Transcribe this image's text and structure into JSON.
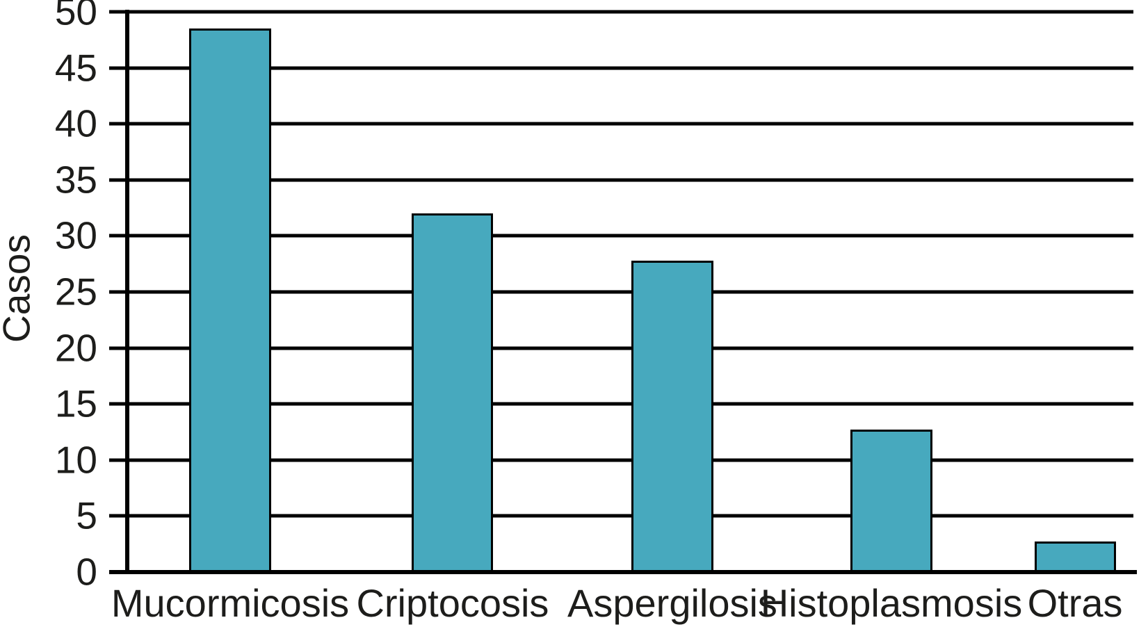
{
  "chart_data": {
    "type": "bar",
    "title": "",
    "xlabel": "",
    "ylabel": "Casos",
    "categories": [
      "Mucormicosis",
      "Criptocosis",
      "Aspergilosis",
      "Histoplasmosis",
      "Otras"
    ],
    "values": [
      48.5,
      32,
      27.8,
      12.7,
      2.7
    ],
    "ylim": [
      0,
      50
    ],
    "yticks": [
      0,
      5,
      10,
      15,
      20,
      25,
      30,
      35,
      40,
      45,
      50
    ],
    "grid": "horizontal-on",
    "legend": "none",
    "bar_color": "#47A9BE",
    "bar_border_color": "#000000",
    "axis_color": "#000000",
    "grid_color": "#000000",
    "text_color": "#1d1d1b",
    "background_color": "#ffffff",
    "bar_centers_frac": [
      0.1023,
      0.3234,
      0.5418,
      0.7595,
      0.942
    ],
    "bar_width_frac": 0.0809
  }
}
